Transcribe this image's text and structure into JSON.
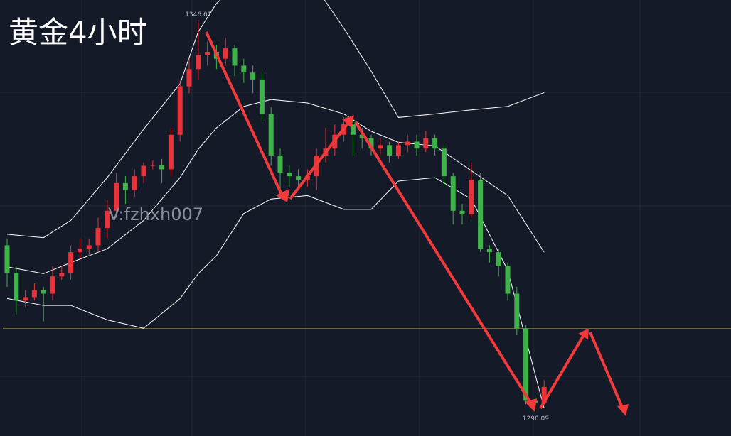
{
  "chart_data": {
    "type": "candlestick",
    "title": "黄金4小时",
    "watermark": "V:fzhxh007",
    "up_color": "#e8333b",
    "down_color": "#3fb24a",
    "ylim": [
      1286.4,
      1349.5
    ],
    "open": [
      1314,
      1310,
      1306,
      1306.5,
      1307.5,
      1307,
      1309.5,
      1310,
      1313,
      1313.5,
      1314,
      1316.5,
      1319,
      1323,
      1322,
      1324,
      1325.5,
      1325.6,
      1325,
      1330,
      1337,
      1339.5,
      1341.5,
      1342,
      1341,
      1342.5,
      1340,
      1339,
      1338,
      1333,
      1327,
      1324.5,
      1324,
      1323.5,
      1324,
      1327,
      1328,
      1330,
      1331.5,
      1330,
      1329.5,
      1328,
      1328.5,
      1327,
      1328.5,
      1329,
      1328,
      1329.5,
      1328,
      1324,
      1319,
      1318.5,
      1323.5,
      1313.5,
      1313,
      1311,
      1307,
      1302,
      1291.5,
      1291.2
    ],
    "high": [
      1315,
      1311,
      1307.5,
      1308.5,
      1308,
      1311,
      1311,
      1314,
      1315,
      1315,
      1318,
      1320.5,
      1324.5,
      1324,
      1325,
      1326,
      1326.3,
      1326.5,
      1331,
      1338,
      1341,
      1346.61,
      1343.5,
      1343,
      1344,
      1343,
      1341,
      1340,
      1339,
      1334,
      1328,
      1325.5,
      1325,
      1325,
      1328,
      1331,
      1331.5,
      1332.5,
      1332,
      1331,
      1330,
      1329.5,
      1329,
      1329,
      1330,
      1330,
      1330.5,
      1330,
      1328.5,
      1324.5,
      1320,
      1326,
      1324.5,
      1314,
      1313.5,
      1311.5,
      1308,
      1302.5,
      1292,
      1294.5
    ],
    "low": [
      1308,
      1304,
      1305,
      1306,
      1303,
      1306,
      1309,
      1309,
      1312,
      1312.5,
      1313,
      1315,
      1318,
      1320,
      1321,
      1323,
      1325,
      1323,
      1324,
      1329,
      1336,
      1338,
      1340,
      1339.5,
      1340,
      1338.5,
      1337.5,
      1336,
      1332,
      1325.5,
      1322,
      1322.5,
      1322,
      1322.5,
      1322,
      1326,
      1327,
      1329,
      1327,
      1328,
      1327,
      1327,
      1326,
      1326.5,
      1327.5,
      1327,
      1327.5,
      1327,
      1322.5,
      1317,
      1317,
      1318,
      1313,
      1311.5,
      1309.5,
      1306,
      1301,
      1291,
      1290.09,
      1290.8
    ],
    "close": [
      1310,
      1306,
      1306.5,
      1307.5,
      1307,
      1309.5,
      1310,
      1313,
      1313.5,
      1314,
      1316.5,
      1319,
      1323,
      1322,
      1324,
      1325.5,
      1325.6,
      1325,
      1330,
      1337,
      1339.5,
      1341.5,
      1342,
      1341,
      1342.5,
      1340,
      1339,
      1338,
      1333,
      1327,
      1324.5,
      1324,
      1323.5,
      1324,
      1327,
      1328,
      1330,
      1331.5,
      1330,
      1329.5,
      1328,
      1328.5,
      1327,
      1328.5,
      1329,
      1328,
      1329.5,
      1328,
      1324,
      1319,
      1318.5,
      1323.5,
      1313.5,
      1313,
      1311,
      1307,
      1302,
      1291.5,
      1291.2,
      1293.5
    ],
    "bands": [
      {
        "color": "#ffffff",
        "x": [
          0,
          4,
          7,
          11,
          15,
          19,
          21,
          23,
          26,
          29,
          33,
          37,
          40,
          43,
          47,
          51,
          55,
          59
        ],
        "values": [
          1315.6,
          1315.1,
          1317.6,
          1323.8,
          1330.8,
          1337.4,
          1344.9,
          1349.0,
          1352.6,
          1353.6,
          1353.1,
          1345.4,
          1339.2,
          1332.5,
          1333.0,
          1333.6,
          1334.1,
          1336.1
        ]
      },
      {
        "color": "#ffffff",
        "x": [
          0,
          4,
          7,
          11,
          15,
          19,
          21,
          23,
          26,
          29,
          33,
          37,
          40,
          43,
          47,
          51,
          55,
          59
        ],
        "values": [
          1310.9,
          1309.9,
          1311.5,
          1313.5,
          1317.6,
          1323.8,
          1327.9,
          1331.0,
          1334.1,
          1335.1,
          1334.6,
          1333.0,
          1330.5,
          1328.9,
          1328.4,
          1324.8,
          1321.2,
          1313.0
        ]
      },
      {
        "color": "#ffffff",
        "x": [
          0,
          4,
          7,
          11,
          15,
          19,
          21,
          23,
          26,
          29,
          33,
          37,
          40,
          43,
          47,
          51,
          55,
          59
        ],
        "values": [
          1306.3,
          1305.3,
          1305.3,
          1303.2,
          1302.0,
          1306.3,
          1309.9,
          1312.5,
          1318.6,
          1320.7,
          1321.2,
          1319.2,
          1319.2,
          1323.3,
          1323.8,
          1320.7,
          1310.4,
          1290.4
        ]
      }
    ],
    "hline": {
      "value": 1301.9,
      "color": "#e8e35a"
    }
  }
}
